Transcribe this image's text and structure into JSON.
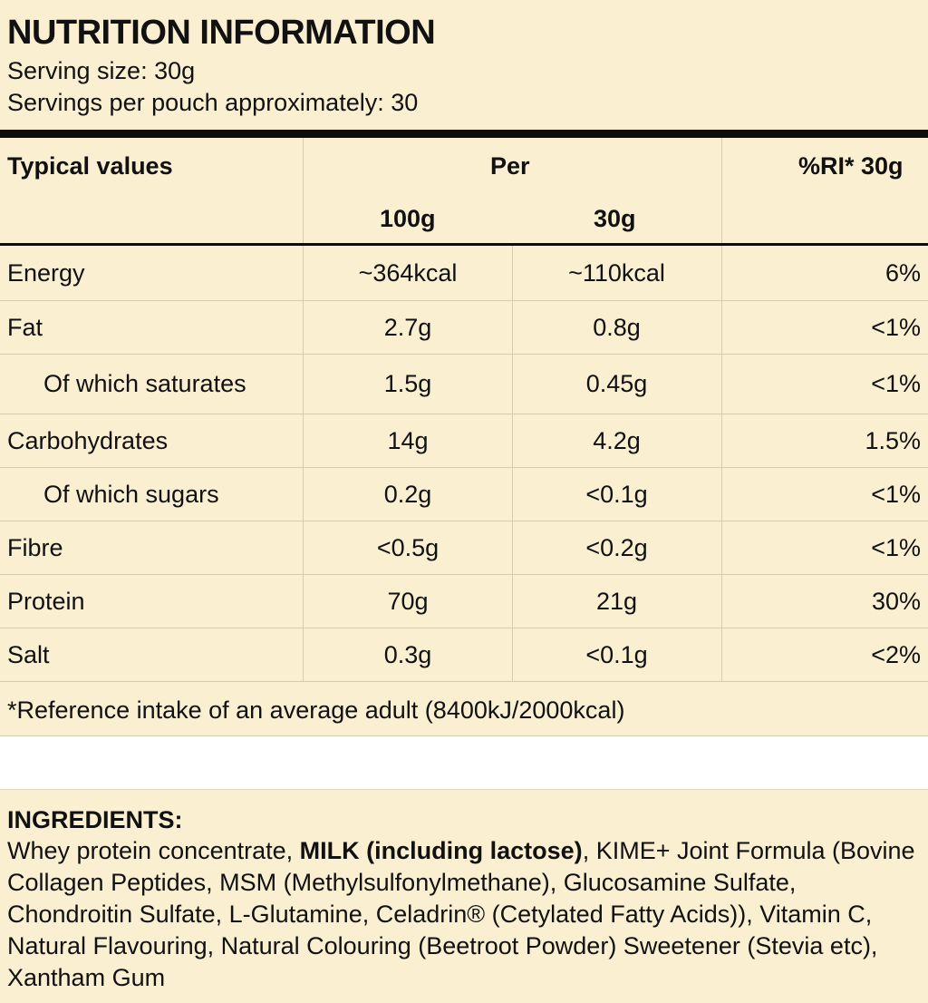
{
  "nutrition": {
    "title": "NUTRITION INFORMATION",
    "serving_size": "Serving size: 30g",
    "servings_per_pouch": "Servings per pouch approximately: 30",
    "headers": {
      "typical": "Typical values",
      "per": "Per",
      "per_100": "100g",
      "per_30": "30g",
      "ri": "%RI* 30g"
    },
    "rows": [
      {
        "name": "Energy",
        "per100": "~364kcal",
        "per30": "~110kcal",
        "ri": "6%"
      },
      {
        "name": "Fat",
        "per100": "2.7g",
        "per30": "0.8g",
        "ri": "<1%"
      },
      {
        "name": "Of which saturates",
        "per100": "1.5g",
        "per30": "0.45g",
        "ri": "<1%"
      },
      {
        "name": "Carbohydrates",
        "per100": "14g",
        "per30": "4.2g",
        "ri": "1.5%"
      },
      {
        "name": "Of which sugars",
        "per100": "0.2g",
        "per30": "<0.1g",
        "ri": "<1%"
      },
      {
        "name": "Fibre",
        "per100": "<0.5g",
        "per30": "<0.2g",
        "ri": "<1%"
      },
      {
        "name": "Protein",
        "per100": "70g",
        "per30": "21g",
        "ri": "30%"
      },
      {
        "name": "Salt",
        "per100": "0.3g",
        "per30": "<0.1g",
        "ri": "<2%"
      }
    ],
    "footnote": "*Reference intake of an average adult (8400kJ/2000kcal)"
  },
  "ingredients": {
    "title": "INGREDIENTS:",
    "text_before": "Whey protein concentrate, ",
    "allergen": "MILK (including lactose)",
    "text_after": ", KIME+ Joint Formula (Bovine Collagen Peptides, MSM (Methylsulfonylmethane), Glucosamine Sulfate, Chondroitin Sulfate, L-Glutamine, Celadrin® (Cetylated Fatty Acids)), Vitamin C, Natural Flavouring, Natural Colouring (Beetroot Powder) Sweetener (Stevia etc), Xantham Gum"
  }
}
